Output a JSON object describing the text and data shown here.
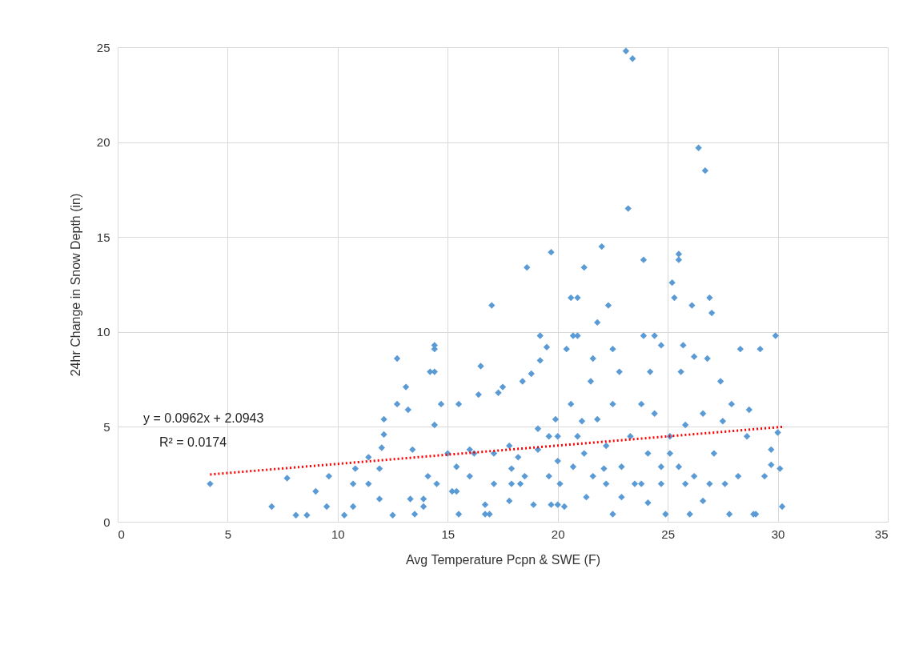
{
  "chart_data": {
    "type": "scatter",
    "xlabel": "Avg Temperature  Pcpn & SWE (F)",
    "ylabel": "24hr Change in Snow Depth  (in)",
    "xlim": [
      0,
      35
    ],
    "xticks": [
      0,
      5,
      10,
      15,
      20,
      25,
      30,
      35
    ],
    "ylim": [
      0,
      25
    ],
    "yticks": [
      0,
      5,
      10,
      15,
      20,
      25
    ],
    "grid": true,
    "annotations": [
      "y = 0.0962x + 2.0943",
      "R² = 0.0174"
    ],
    "series": [
      {
        "color": "#5b9bd5",
        "marker": "diamond",
        "x": [
          4.2,
          7.0,
          7.7,
          8.1,
          8.6,
          9.0,
          9.5,
          9.6,
          10.3,
          10.7,
          10.7,
          10.8,
          11.4,
          11.4,
          11.9,
          11.9,
          12.0,
          12.1,
          12.1,
          12.5,
          12.7,
          12.7,
          13.1,
          13.2,
          13.3,
          13.4,
          13.5,
          13.9,
          13.9,
          14.1,
          14.2,
          14.4,
          14.4,
          14.4,
          14.4,
          14.7,
          14.5,
          15.0,
          15.2,
          15.4,
          15.4,
          15.5,
          15.5,
          16.0,
          16.0,
          16.2,
          16.4,
          16.5,
          16.7,
          16.7,
          17.0,
          17.1,
          17.1,
          17.3,
          17.5,
          17.8,
          17.9,
          17.9,
          18.2,
          18.3,
          18.4,
          18.6,
          18.8,
          18.9,
          19.1,
          19.2,
          19.2,
          19.5,
          19.6,
          19.6,
          19.7,
          19.7,
          19.9,
          20.0,
          20.1,
          20.3,
          20.4,
          20.6,
          20.6,
          20.9,
          20.7,
          20.9,
          21.2,
          21.2,
          21.3,
          21.5,
          21.6,
          21.8,
          21.8,
          22.0,
          22.2,
          22.3,
          22.5,
          22.5,
          22.8,
          22.9,
          23.1,
          23.4,
          23.2,
          23.3,
          23.5,
          23.8,
          23.9,
          23.9,
          24.1,
          24.2,
          24.4,
          24.7,
          24.7,
          24.9,
          25.1,
          25.2,
          25.3,
          25.5,
          25.5,
          25.6,
          25.7,
          25.8,
          26.0,
          26.1,
          26.2,
          26.4,
          26.6,
          26.7,
          26.8,
          26.9,
          27.0,
          27.1,
          27.4,
          27.6,
          27.8,
          27.9,
          28.2,
          28.3,
          28.6,
          28.7,
          28.9,
          29.0,
          29.2,
          29.4,
          29.7,
          29.7,
          29.9,
          30.0,
          30.1,
          30.2,
          20.7,
          21.6,
          22.1,
          22.9,
          23.8,
          24.7,
          25.5,
          26.2,
          26.6,
          20.0,
          21.1,
          24.4,
          25.8,
          17.8,
          18.5,
          16.9,
          24.1,
          26.9,
          27.5,
          22.5,
          22.2,
          25.1,
          20.0,
          20.9,
          19.1
        ],
        "values": [
          2.0,
          0.8,
          2.3,
          0.35,
          0.35,
          1.6,
          0.8,
          2.4,
          0.35,
          0.8,
          2.0,
          2.8,
          3.4,
          2.0,
          1.2,
          2.8,
          3.9,
          4.6,
          5.4,
          0.35,
          6.2,
          8.6,
          7.1,
          5.9,
          1.2,
          3.8,
          0.4,
          1.2,
          0.8,
          2.4,
          7.9,
          9.3,
          9.1,
          5.1,
          7.9,
          6.2,
          2.0,
          3.6,
          1.6,
          1.6,
          2.9,
          6.2,
          0.4,
          3.8,
          2.4,
          3.6,
          6.7,
          8.2,
          0.4,
          0.9,
          11.4,
          3.6,
          2.0,
          6.8,
          7.1,
          4.0,
          2.8,
          2.0,
          3.4,
          2.0,
          7.4,
          13.4,
          7.8,
          0.9,
          4.9,
          8.5,
          9.8,
          9.2,
          4.5,
          2.4,
          0.9,
          14.2,
          5.4,
          4.5,
          2.0,
          0.8,
          9.1,
          6.2,
          11.8,
          11.8,
          9.8,
          9.8,
          13.4,
          3.6,
          1.3,
          7.4,
          8.6,
          10.5,
          5.4,
          14.5,
          2.0,
          11.4,
          9.1,
          0.4,
          7.9,
          2.9,
          24.8,
          24.4,
          16.5,
          4.5,
          2.0,
          6.2,
          13.8,
          9.8,
          3.6,
          7.9,
          9.8,
          9.3,
          2.0,
          0.4,
          4.5,
          12.6,
          11.8,
          13.8,
          14.1,
          7.9,
          9.3,
          2.0,
          0.4,
          11.4,
          8.7,
          19.7,
          5.7,
          18.5,
          8.6,
          11.8,
          11.0,
          3.6,
          7.4,
          2.0,
          0.4,
          6.2,
          2.4,
          9.1,
          4.5,
          5.9,
          0.4,
          0.4,
          9.1,
          2.4,
          3.8,
          3.0,
          9.8,
          4.7,
          2.8,
          0.8,
          2.9,
          2.4,
          2.8,
          1.3,
          2.0,
          2.9,
          2.9,
          2.4,
          1.1,
          3.2,
          5.3,
          5.7,
          5.1,
          1.1,
          2.4,
          0.4,
          1.0,
          2.0,
          5.3,
          6.2,
          4.0,
          3.6,
          0.9,
          4.5,
          3.8
        ]
      },
      {
        "type": "line",
        "color": "#ff0000",
        "line_style": "dotted",
        "x": [
          4.2,
          30.2
        ],
        "values": [
          2.49,
          5.0
        ]
      }
    ]
  }
}
